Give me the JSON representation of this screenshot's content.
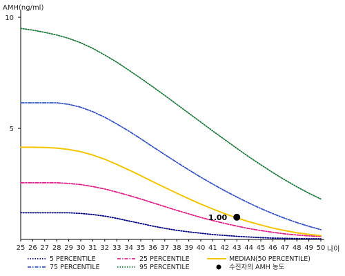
{
  "chart_data": {
    "type": "line",
    "ylabel": "AMH(ng/ml)",
    "xlabel": "나이",
    "xlim": [
      25,
      50
    ],
    "ylim": [
      0,
      10
    ],
    "yticks": [
      5,
      10
    ],
    "x": [
      25,
      26,
      27,
      28,
      29,
      30,
      31,
      32,
      33,
      34,
      35,
      36,
      37,
      38,
      39,
      40,
      41,
      42,
      43,
      44,
      45,
      46,
      47,
      48,
      49,
      50
    ],
    "series": [
      {
        "name": "5 PERCENTILE",
        "color": "#00007f",
        "style": "dotted",
        "values": [
          1.2,
          1.2,
          1.2,
          1.2,
          1.2,
          1.17,
          1.12,
          1.05,
          0.95,
          0.83,
          0.72,
          0.6,
          0.5,
          0.41,
          0.34,
          0.28,
          0.22,
          0.18,
          0.14,
          0.11,
          0.08,
          0.06,
          0.05,
          0.04,
          0.03,
          0.03
        ]
      },
      {
        "name": "25 PERCENTILE",
        "color": "#e0218a",
        "style": "dashdot",
        "values": [
          2.55,
          2.55,
          2.55,
          2.55,
          2.52,
          2.47,
          2.38,
          2.27,
          2.13,
          1.98,
          1.82,
          1.65,
          1.48,
          1.31,
          1.15,
          0.99,
          0.85,
          0.72,
          0.6,
          0.49,
          0.4,
          0.32,
          0.25,
          0.2,
          0.16,
          0.13
        ]
      },
      {
        "name": "MEDIAN(50 PERCENTILE)",
        "color": "#f2c500",
        "style": "solid",
        "values": [
          4.15,
          4.15,
          4.14,
          4.11,
          4.05,
          3.95,
          3.8,
          3.61,
          3.38,
          3.13,
          2.87,
          2.6,
          2.34,
          2.08,
          1.83,
          1.59,
          1.37,
          1.16,
          0.97,
          0.8,
          0.65,
          0.51,
          0.4,
          0.3,
          0.23,
          0.17
        ]
      },
      {
        "name": "75 PERCENTILE",
        "color": "#3a56c4",
        "style": "dashdot",
        "values": [
          6.15,
          6.15,
          6.15,
          6.15,
          6.08,
          5.95,
          5.75,
          5.5,
          5.2,
          4.88,
          4.53,
          4.17,
          3.82,
          3.47,
          3.13,
          2.8,
          2.49,
          2.19,
          1.91,
          1.64,
          1.39,
          1.16,
          0.95,
          0.76,
          0.59,
          0.44
        ]
      },
      {
        "name": "95 PERCENTILE",
        "color": "#1f7a3e",
        "style": "dotted",
        "values": [
          9.5,
          9.42,
          9.32,
          9.2,
          9.05,
          8.85,
          8.6,
          8.3,
          7.98,
          7.62,
          7.25,
          6.87,
          6.48,
          6.08,
          5.68,
          5.28,
          4.88,
          4.49,
          4.1,
          3.72,
          3.36,
          3.01,
          2.68,
          2.37,
          2.08,
          1.82
        ]
      }
    ],
    "marker": {
      "name": "수진자의 AMH 농도",
      "x": 43,
      "y": 1.0,
      "label": "1.00",
      "color": "#000000"
    },
    "legend": {
      "position": "bottom",
      "items": [
        {
          "series": "5 PERCENTILE",
          "label": "5 PERCENTILE"
        },
        {
          "series": "25 PERCENTILE",
          "label": "25 PERCENTILE"
        },
        {
          "series": "MEDIAN(50 PERCENTILE)",
          "label": "MEDIAN(50 PERCENTILE)"
        },
        {
          "series": "75 PERCENTILE",
          "label": "75 PERCENTILE"
        },
        {
          "series": "95 PERCENTILE",
          "label": "95 PERCENTILE"
        },
        {
          "marker": true,
          "label": "수진자의 AMH 농도"
        }
      ]
    },
    "grid": false
  }
}
